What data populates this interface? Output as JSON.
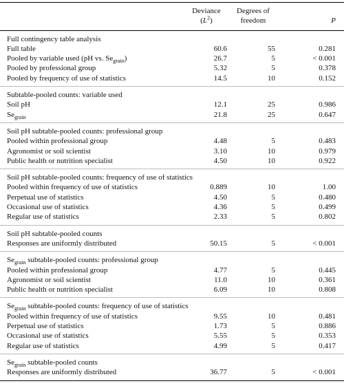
{
  "table": {
    "header": {
      "deviance": [
        [
          {
            "text": "Deviance"
          }
        ],
        [
          {
            "text": "("
          },
          {
            "italic": "L"
          },
          {
            "sup": "2"
          },
          {
            "text": ")"
          }
        ]
      ],
      "df": [
        [
          {
            "text": "Degrees of"
          }
        ],
        [
          {
            "text": "freedom"
          }
        ]
      ],
      "p": [
        [
          {
            "italic": "P"
          }
        ]
      ]
    },
    "sections": [
      {
        "title": [
          {
            "text": "Full contingency table analysis"
          }
        ],
        "rows": [
          {
            "label": [
              {
                "text": "Full table"
              }
            ],
            "deviance": "60.6",
            "df": "55",
            "p": "0.281"
          },
          {
            "label": [
              {
                "text": "Pooled by variable used (pH vs. Se"
              },
              {
                "sub": "grain"
              },
              {
                "text": ")"
              }
            ],
            "deviance": "26.7",
            "df": "5",
            "p": "< 0.001"
          },
          {
            "label": [
              {
                "text": "Pooled by professional group"
              }
            ],
            "deviance": "5.32",
            "df": "5",
            "p": "0.378"
          },
          {
            "label": [
              {
                "text": "Pooled by frequency of use of statistics"
              }
            ],
            "deviance": "14.5",
            "df": "10",
            "p": "0.152"
          }
        ]
      },
      {
        "title": [
          {
            "text": "Subtable-pooled counts: variable used"
          }
        ],
        "rows": [
          {
            "label": [
              {
                "text": "Soil pH"
              }
            ],
            "deviance": "12.1",
            "df": "25",
            "p": "0.986"
          },
          {
            "label": [
              {
                "text": "Se"
              },
              {
                "sub": "grain"
              }
            ],
            "deviance": "21.8",
            "df": "25",
            "p": "0.647"
          }
        ]
      },
      {
        "title": [
          {
            "text": "Soil pH subtable-pooled counts: professional group"
          }
        ],
        "rows": [
          {
            "label": [
              {
                "text": "Pooled within professional group"
              }
            ],
            "deviance": "4.48",
            "df": "5",
            "p": "0.483"
          },
          {
            "label": [
              {
                "text": "Agronomist or soil scientist"
              }
            ],
            "deviance": "3.10",
            "df": "10",
            "p": "0.979"
          },
          {
            "label": [
              {
                "text": "Public health or nutrition specialist"
              }
            ],
            "deviance": "4.50",
            "df": "10",
            "p": "0.922"
          }
        ]
      },
      {
        "title": [
          {
            "text": "Soil pH subtable-pooled counts: frequency of use of statistics"
          }
        ],
        "rows": [
          {
            "label": [
              {
                "text": "Pooled within frequency of use of statistics"
              }
            ],
            "deviance": "0.889",
            "df": "10",
            "p": "1.00"
          },
          {
            "label": [
              {
                "text": "Perpetual use of statistics"
              }
            ],
            "deviance": "4.50",
            "df": "5",
            "p": "0.480"
          },
          {
            "label": [
              {
                "text": "Occasional use of statistics"
              }
            ],
            "deviance": "4.36",
            "df": "5",
            "p": "0.499"
          },
          {
            "label": [
              {
                "text": "Regular use of statistics"
              }
            ],
            "deviance": "2.33",
            "df": "5",
            "p": "0.802"
          }
        ]
      },
      {
        "title": [
          {
            "text": "Soil pH subtable-pooled counts"
          }
        ],
        "rows": [
          {
            "label": [
              {
                "text": "Responses are uniformly distributed"
              }
            ],
            "deviance": "50.15",
            "df": "5",
            "p": "< 0.001"
          }
        ]
      },
      {
        "title": [
          {
            "text": "Se"
          },
          {
            "sub": "grain"
          },
          {
            "text": " subtable-pooled counts: professional group"
          }
        ],
        "rows": [
          {
            "label": [
              {
                "text": "Pooled within professional group"
              }
            ],
            "deviance": "4.77",
            "df": "5",
            "p": "0.445"
          },
          {
            "label": [
              {
                "text": "Agronomist or soil scientist"
              }
            ],
            "deviance": "11.0",
            "df": "10",
            "p": "0.361"
          },
          {
            "label": [
              {
                "text": "Public health or nutrition specialist"
              }
            ],
            "deviance": "6.09",
            "df": "10",
            "p": "0.808"
          }
        ]
      },
      {
        "title": [
          {
            "text": "Se"
          },
          {
            "sub": "grain"
          },
          {
            "text": " subtable-pooled counts: frequency of use of statistics"
          }
        ],
        "rows": [
          {
            "label": [
              {
                "text": "Pooled within frequency of use of statistics"
              }
            ],
            "deviance": "9.55",
            "df": "10",
            "p": "0.481"
          },
          {
            "label": [
              {
                "text": "Perpetual use of statistics"
              }
            ],
            "deviance": "1.73",
            "df": "5",
            "p": "0.886"
          },
          {
            "label": [
              {
                "text": "Occasional use of statistics"
              }
            ],
            "deviance": "5.55",
            "df": "5",
            "p": "0.353"
          },
          {
            "label": [
              {
                "text": "Regular use of statistics"
              }
            ],
            "deviance": "4.99",
            "df": "5",
            "p": "0.417"
          }
        ]
      },
      {
        "title": [
          {
            "text": "Se"
          },
          {
            "sub": "grain"
          },
          {
            "text": " subtable-pooled counts"
          }
        ],
        "rows": [
          {
            "label": [
              {
                "text": "Responses are uniformly distributed"
              }
            ],
            "deviance": "36.77",
            "df": "5",
            "p": "< 0.001"
          }
        ]
      }
    ]
  }
}
